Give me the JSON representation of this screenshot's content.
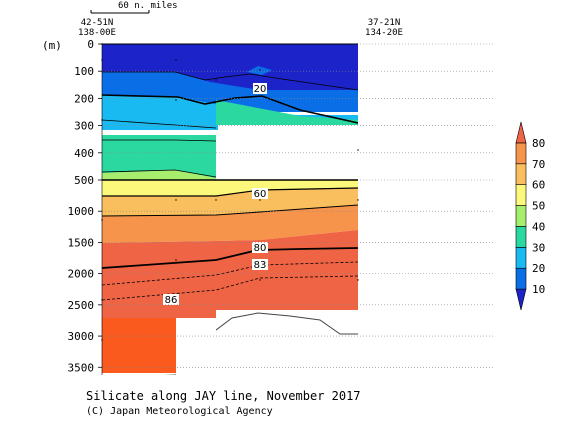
{
  "chart_data": {
    "type": "heatmap",
    "title": "Silicate along JAY line, November 2017",
    "credit": "(C) Japan Meteorological Agency",
    "scale_bar_label": "60 n. miles",
    "y_unit": "(m)",
    "stations": {
      "start": {
        "lat": "42-51N",
        "lon": "138-00E"
      },
      "end": {
        "lat": "37-21N",
        "lon": "134-20E"
      }
    },
    "upper_panel": {
      "depth_range": [
        0,
        500
      ],
      "ticks": [
        "0",
        "100",
        "200",
        "300",
        "400",
        "500"
      ]
    },
    "lower_panel": {
      "depth_range": [
        500,
        3800
      ],
      "ticks": [
        "1000",
        "1500",
        "2000",
        "2500",
        "3000",
        "3500"
      ]
    },
    "contour_labels": [
      "20",
      "60",
      "80",
      "83",
      "86"
    ],
    "colorbar": {
      "ticks": [
        "10",
        "20",
        "30",
        "40",
        "50",
        "60",
        "70",
        "80"
      ],
      "colors": [
        "#1c23c8",
        "#0a6fe6",
        "#19b9f2",
        "#2bd9a0",
        "#a8ee6e",
        "#fbf87c",
        "#f9bf5f",
        "#f7944c",
        "#ee6445"
      ]
    }
  }
}
